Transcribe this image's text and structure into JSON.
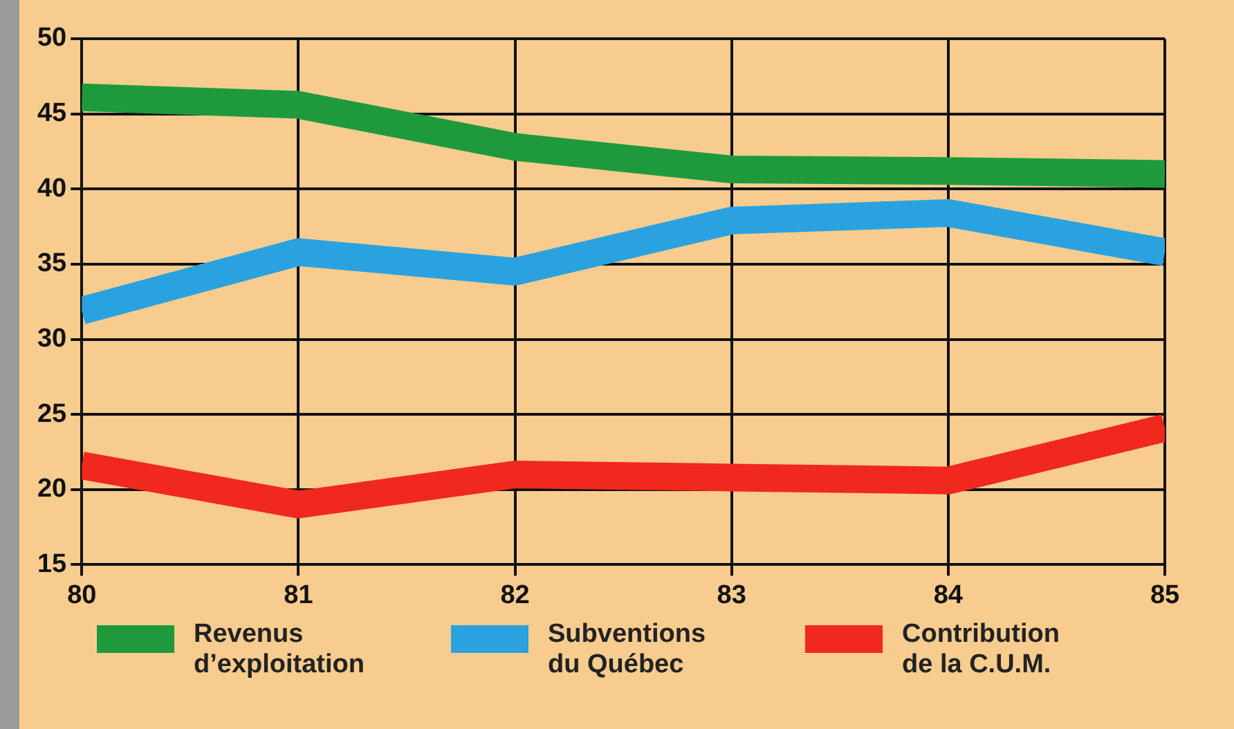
{
  "chart_data": {
    "type": "line",
    "x": [
      80,
      81,
      82,
      83,
      84,
      85
    ],
    "xlim": [
      80,
      85
    ],
    "xticks": [
      80,
      81,
      82,
      83,
      84,
      85
    ],
    "ylim": [
      15,
      50
    ],
    "yticks": [
      15,
      20,
      25,
      30,
      35,
      40,
      45,
      50
    ],
    "grid": true,
    "legend": "bottom",
    "marker": "none",
    "series": [
      {
        "name": "Revenus d’exploitation",
        "color": "#1e9a3c",
        "values": [
          46.1,
          45.6,
          42.8,
          41.3,
          41.2,
          41.0
        ]
      },
      {
        "name": "Subventions du Québec",
        "color": "#2aa2e0",
        "values": [
          31.9,
          35.8,
          34.5,
          37.9,
          38.4,
          35.8
        ]
      },
      {
        "name": "Contribution de la C.U.M.",
        "color": "#f0281e",
        "values": [
          21.6,
          19.0,
          21.0,
          20.8,
          20.6,
          24.1
        ]
      }
    ]
  }
}
